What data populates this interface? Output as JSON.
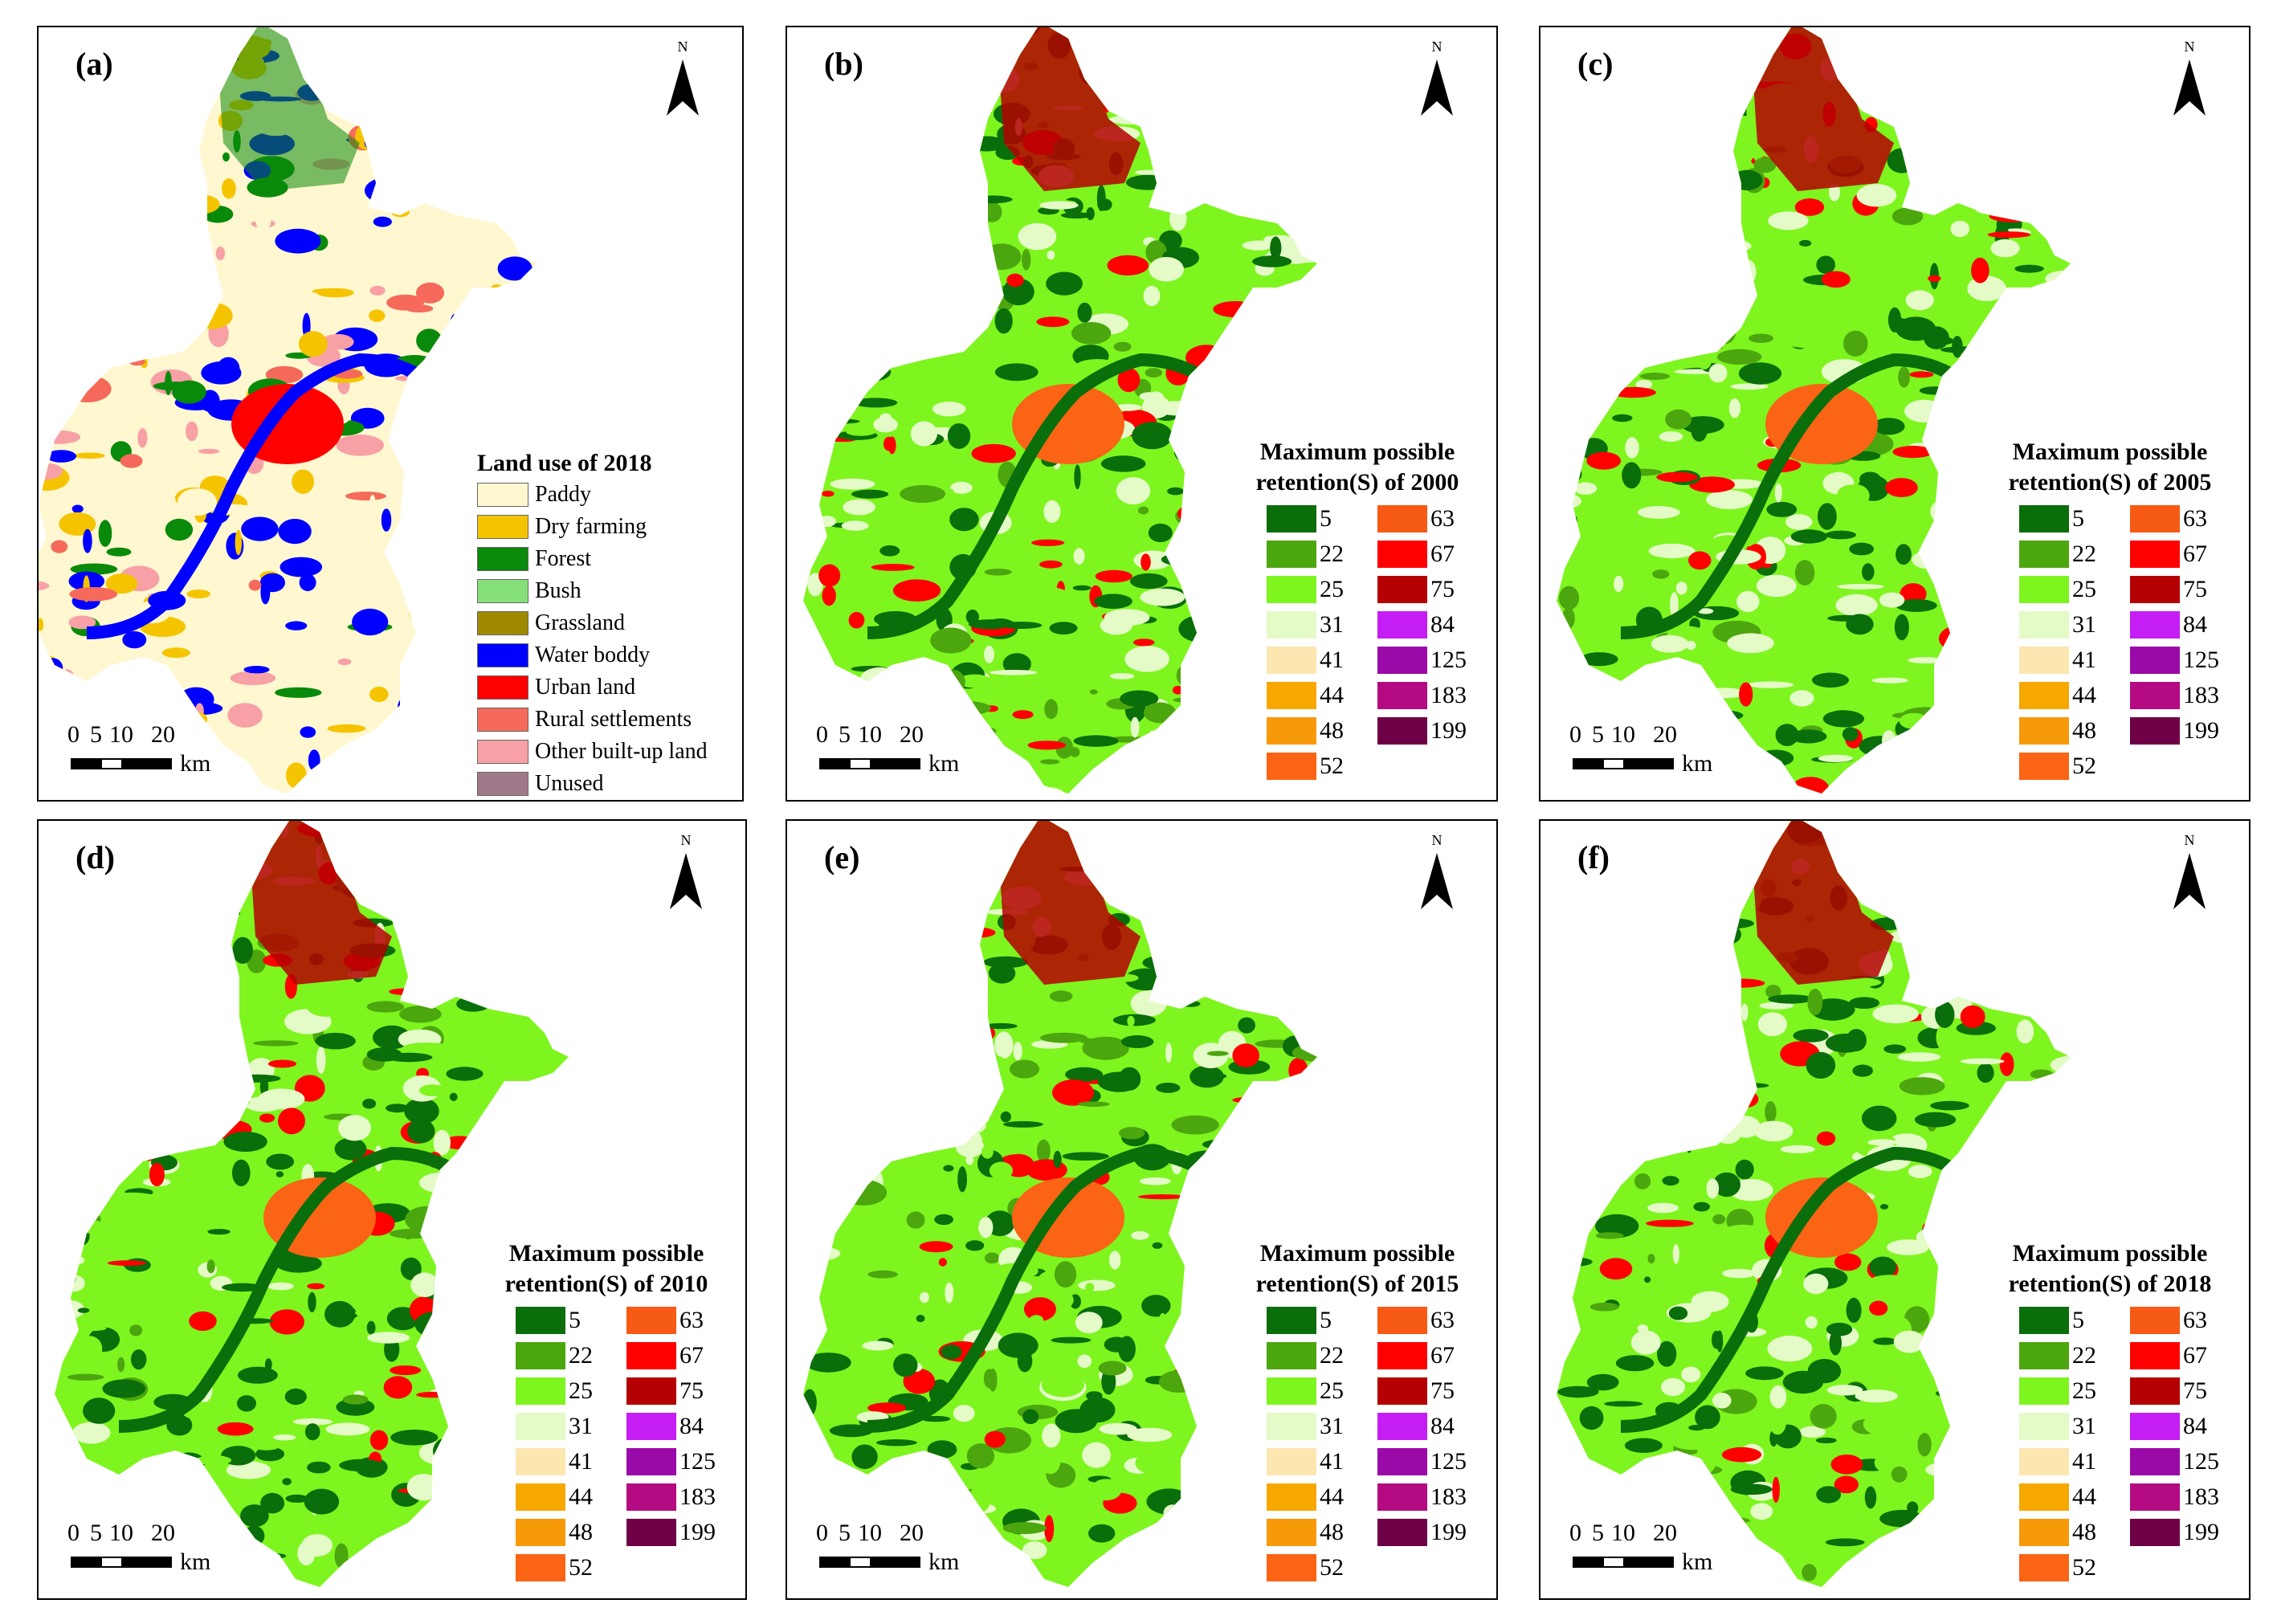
{
  "panels": [
    {
      "id": "a",
      "label": "(a)",
      "type": "landuse"
    },
    {
      "id": "b",
      "label": "(b)",
      "type": "retention",
      "legend_title_1": "Maximum possible",
      "legend_title_2": "retention(S) of 2000"
    },
    {
      "id": "c",
      "label": "(c)",
      "type": "retention",
      "legend_title_1": "Maximum possible",
      "legend_title_2": "retention(S) of 2005"
    },
    {
      "id": "d",
      "label": "(d)",
      "type": "retention",
      "legend_title_1": "Maximum possible",
      "legend_title_2": "retention(S) of 2010"
    },
    {
      "id": "e",
      "label": "(e)",
      "type": "retention",
      "legend_title_1": "Maximum possible",
      "legend_title_2": "retention(S) of 2015"
    },
    {
      "id": "f",
      "label": "(f)",
      "type": "retention",
      "legend_title_1": "Maximum possible",
      "legend_title_2": "retention(S) of 2018"
    }
  ],
  "north_label": "N",
  "scale": {
    "ticks": [
      "0",
      "5",
      "10",
      "20"
    ],
    "unit": "km"
  },
  "landuse_legend": {
    "title": "Land use of 2018",
    "items": [
      {
        "label": "Paddy",
        "color": "#fff7cf"
      },
      {
        "label": "Dry farming",
        "color": "#f5c400"
      },
      {
        "label": "Forest",
        "color": "#0a8a0a"
      },
      {
        "label": "Bush",
        "color": "#86e07a"
      },
      {
        "label": "Grassland",
        "color": "#a08a00"
      },
      {
        "label": "Water boddy",
        "color": "#0000ff"
      },
      {
        "label": "Urban land",
        "color": "#ff0000"
      },
      {
        "label": "Rural settlements",
        "color": "#f56a5a"
      },
      {
        "label": "Other built-up land",
        "color": "#f7a0a6"
      },
      {
        "label": "Unused",
        "color": "#a07a8a"
      }
    ]
  },
  "retention_legend": {
    "left": [
      {
        "value": "5",
        "color": "#0a6e0a"
      },
      {
        "value": "22",
        "color": "#4ca60e"
      },
      {
        "value": "25",
        "color": "#7ef51e"
      },
      {
        "value": "31",
        "color": "#e4fbc8"
      },
      {
        "value": "41",
        "color": "#fde7b0"
      },
      {
        "value": "44",
        "color": "#f7a800"
      },
      {
        "value": "48",
        "color": "#f79a0a"
      },
      {
        "value": "52",
        "color": "#fa6414"
      }
    ],
    "right": [
      {
        "value": "63",
        "color": "#f75a14"
      },
      {
        "value": "67",
        "color": "#ff0000"
      },
      {
        "value": "75",
        "color": "#b40000"
      },
      {
        "value": "84",
        "color": "#c41ef5"
      },
      {
        "value": "125",
        "color": "#9a0aa8"
      },
      {
        "value": "183",
        "color": "#b40a82"
      },
      {
        "value": "199",
        "color": "#6e0046"
      }
    ]
  }
}
